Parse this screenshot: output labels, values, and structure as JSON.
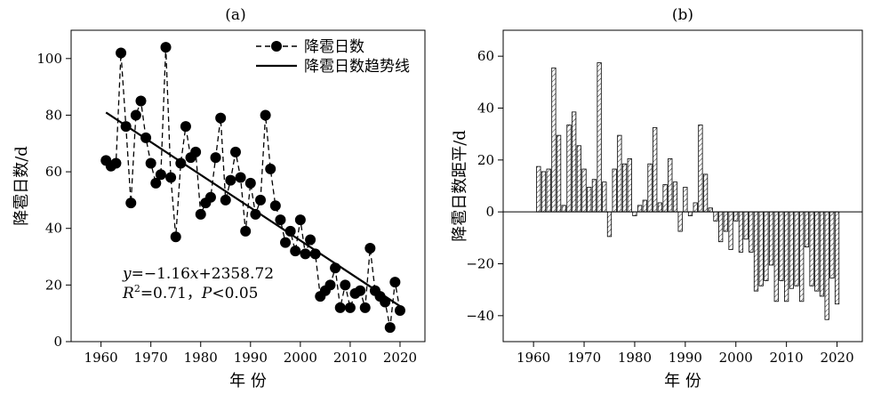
{
  "chart_data": [
    {
      "type": "scatter",
      "panel_label": "(a)",
      "xlabel": "年 份",
      "ylabel": "降雹日数/d",
      "xlim": [
        1954,
        2025
      ],
      "ylim": [
        0,
        110
      ],
      "x_ticks": [
        1960,
        1970,
        1980,
        1990,
        2000,
        2010,
        2020
      ],
      "y_ticks": [
        0,
        20,
        40,
        60,
        80,
        100
      ],
      "legend": {
        "position": "top-right",
        "entries": [
          "降雹日数",
          "降雹日数趋势线"
        ]
      },
      "series": [
        {
          "name": "降雹日数",
          "style": "dashed-line-with-markers",
          "x": [
            1961,
            1962,
            1963,
            1964,
            1965,
            1966,
            1967,
            1968,
            1969,
            1970,
            1971,
            1972,
            1973,
            1974,
            1975,
            1976,
            1977,
            1978,
            1979,
            1980,
            1981,
            1982,
            1983,
            1984,
            1985,
            1986,
            1987,
            1988,
            1989,
            1990,
            1991,
            1992,
            1993,
            1994,
            1995,
            1996,
            1997,
            1998,
            1999,
            2000,
            2001,
            2002,
            2003,
            2004,
            2005,
            2006,
            2007,
            2008,
            2009,
            2010,
            2011,
            2012,
            2013,
            2014,
            2015,
            2016,
            2017,
            2018,
            2019,
            2020
          ],
          "y": [
            64,
            62,
            63,
            102,
            76,
            49,
            80,
            85,
            72,
            63,
            56,
            59,
            104,
            58,
            37,
            63,
            76,
            65,
            67,
            45,
            49,
            51,
            65,
            79,
            50,
            57,
            67,
            58,
            39,
            56,
            45,
            50,
            80,
            61,
            48,
            43,
            35,
            39,
            32,
            43,
            31,
            36,
            31,
            16,
            18,
            20,
            26,
            12,
            20,
            12,
            17,
            18,
            12,
            33,
            18,
            16,
            14,
            5,
            21,
            11
          ]
        },
        {
          "name": "降雹日数趋势线",
          "style": "solid-line",
          "x": [
            1961,
            2020
          ],
          "y": [
            80.96,
            12.52
          ]
        }
      ],
      "annotation": {
        "eq_prefix": "y",
        "eq_mid": "=−1.16",
        "eq_var": "x",
        "eq_suffix": "+2358.72",
        "r2_label": "R",
        "r2_sup": "2",
        "r2_value": "=0.71，",
        "p_label": "P",
        "p_value": "<0.05"
      }
    },
    {
      "type": "bar",
      "panel_label": "(b)",
      "xlabel": "年 份",
      "ylabel": "降雹日数距平/d",
      "xlim": [
        1954,
        2025
      ],
      "ylim": [
        -50,
        70
      ],
      "x_ticks": [
        1960,
        1970,
        1980,
        1990,
        2000,
        2010,
        2020
      ],
      "y_ticks": [
        -40,
        -20,
        0,
        20,
        40,
        60
      ],
      "bar_style": "hatched",
      "x": [
        1961,
        1962,
        1963,
        1964,
        1965,
        1966,
        1967,
        1968,
        1969,
        1970,
        1971,
        1972,
        1973,
        1974,
        1975,
        1976,
        1977,
        1978,
        1979,
        1980,
        1981,
        1982,
        1983,
        1984,
        1985,
        1986,
        1987,
        1988,
        1989,
        1990,
        1991,
        1992,
        1993,
        1994,
        1995,
        1996,
        1997,
        1998,
        1999,
        2000,
        2001,
        2002,
        2003,
        2004,
        2005,
        2006,
        2007,
        2008,
        2009,
        2010,
        2011,
        2012,
        2013,
        2014,
        2015,
        2016,
        2017,
        2018,
        2019,
        2020
      ],
      "values": [
        17.5,
        15.5,
        16.5,
        55.5,
        29.5,
        2.5,
        33.5,
        38.5,
        25.5,
        16.5,
        9.5,
        12.5,
        57.5,
        11.5,
        -9.5,
        16.5,
        29.5,
        18.5,
        20.5,
        -1.5,
        2.5,
        4.5,
        18.5,
        32.5,
        3.5,
        10.5,
        20.5,
        11.5,
        -7.5,
        9.5,
        -1.5,
        3.5,
        33.5,
        14.5,
        1.5,
        -3.5,
        -11.5,
        -7.5,
        -14.5,
        -3.5,
        -15.5,
        -10.5,
        -15.5,
        -30.5,
        -28.5,
        -26.5,
        -20.5,
        -34.5,
        -26.5,
        -34.5,
        -29.5,
        -28.5,
        -34.5,
        -13.5,
        -28.5,
        -30.5,
        -32.5,
        -41.5,
        -25.5,
        -35.5
      ]
    }
  ]
}
